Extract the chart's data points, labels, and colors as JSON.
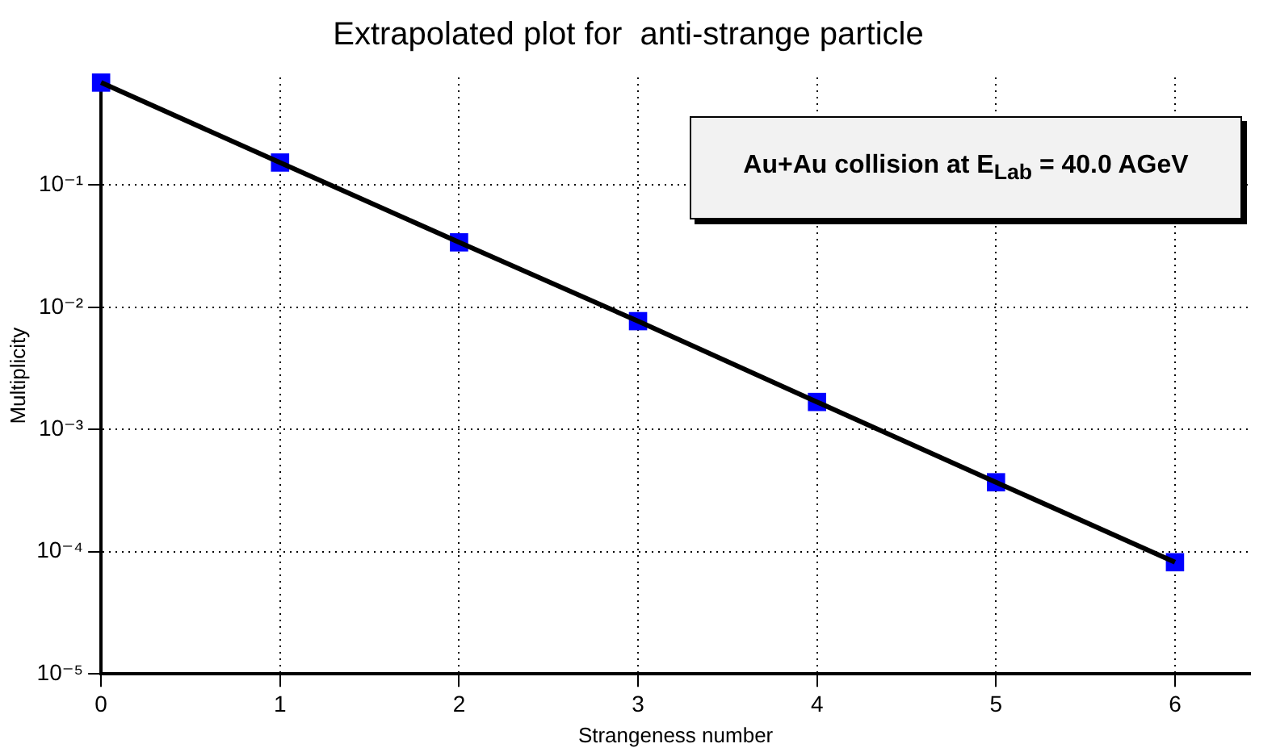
{
  "chart_data": {
    "type": "line",
    "title": "Extrapolated plot for  anti-strange particle",
    "xlabel": "Strangeness number",
    "ylabel": "Multiplicity",
    "x": [
      0,
      1,
      2,
      3,
      4,
      5,
      6
    ],
    "series": [
      {
        "color": "#000000",
        "marker": "none",
        "line_style": "solid",
        "values": [
          0.69,
          0.153,
          0.034,
          0.0077,
          0.00168,
          0.00037,
          8.2e-05
        ]
      },
      {
        "type": "scatter",
        "color": "#0000ff",
        "marker": "square",
        "values": [
          0.69,
          0.153,
          0.034,
          0.0077,
          0.00168,
          0.00037,
          8.2e-05
        ]
      }
    ],
    "log": "y",
    "xlim": [
      0,
      6.42
    ],
    "ylim": [
      1e-05,
      0.76
    ],
    "xticks": [
      0,
      1,
      2,
      3,
      4,
      5,
      6
    ],
    "yticks": [
      {
        "value": 1e-05,
        "label": "10⁻⁵"
      },
      {
        "value": 0.0001,
        "label": "10⁻⁴"
      },
      {
        "value": 0.001,
        "label": "10⁻³"
      },
      {
        "value": 0.01,
        "label": "10⁻²"
      },
      {
        "value": 0.1,
        "label": "10⁻¹"
      }
    ],
    "grid": true,
    "legend": false,
    "annotations": [
      "Au+Au collision at E$_{Lab}$ = 40.0 AGeV"
    ]
  }
}
